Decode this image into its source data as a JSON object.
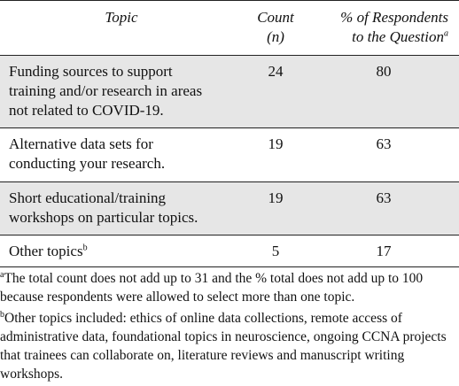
{
  "table": {
    "headers": {
      "topic": "Topic",
      "count_line1": "Count",
      "count_line2": "(n)",
      "pct_line1": "% of Respondents",
      "pct_line2": "to the Question",
      "pct_marker": "a"
    },
    "rows": [
      {
        "topic_lines": [
          "Funding sources to support",
          "training and/or research in areas",
          "not related to COVID-19."
        ],
        "topic_marker": "",
        "count": "24",
        "percent": "80",
        "shaded": true
      },
      {
        "topic_lines": [
          "Alternative data sets for",
          "conducting your research."
        ],
        "topic_marker": "",
        "count": "19",
        "percent": "63",
        "shaded": false
      },
      {
        "topic_lines": [
          "Short educational/training",
          "workshops on particular topics."
        ],
        "topic_marker": "",
        "count": "19",
        "percent": "63",
        "shaded": true
      },
      {
        "topic_lines": [
          "Other topics"
        ],
        "topic_marker": "b",
        "count": "5",
        "percent": "17",
        "shaded": false
      }
    ]
  },
  "footnotes": [
    {
      "marker": "a",
      "text": "The total count does not add up to 31 and the % total does not add up to 100 because respondents were allowed to select more than one topic."
    },
    {
      "marker": "b",
      "text": "Other topics included: ethics of online data collections, remote access of administrative data, foundational topics in neuroscience, ongoing CCNA projects that trainees can collaborate on, literature reviews and manuscript writing workshops."
    }
  ]
}
